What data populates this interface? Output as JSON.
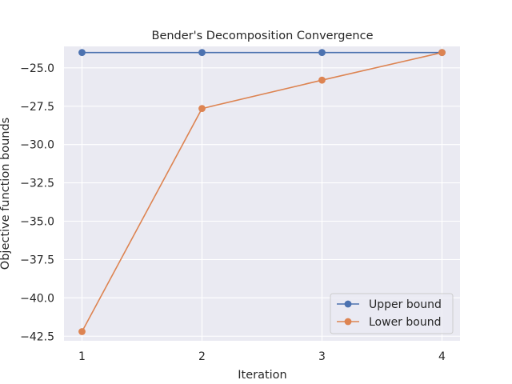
{
  "chart_data": {
    "type": "line",
    "title": "Bender's Decomposition Convergence",
    "xlabel": "Iteration",
    "ylabel": "Objective function bounds",
    "x": [
      1,
      2,
      3,
      4
    ],
    "xticks": [
      "1",
      "2",
      "3",
      "4"
    ],
    "yticks": [
      "-25.0",
      "-27.5",
      "-30.0",
      "-32.5",
      "-35.0",
      "-37.5",
      "-40.0",
      "-42.5"
    ],
    "xlim": [
      0.85,
      4.15
    ],
    "ylim": [
      -42.8,
      -23.6
    ],
    "grid": true,
    "legend_position": "lower-right",
    "series": [
      {
        "name": "Upper bound",
        "color": "#4c72b0",
        "values": [
          -24.0,
          -24.0,
          -24.0,
          -24.0
        ]
      },
      {
        "name": "Lower bound",
        "color": "#dd8452",
        "values": [
          -42.2,
          -27.65,
          -25.8,
          -24.0
        ]
      }
    ]
  },
  "colors": {
    "plot_background": "#eaeaf2",
    "grid": "#ffffff"
  }
}
